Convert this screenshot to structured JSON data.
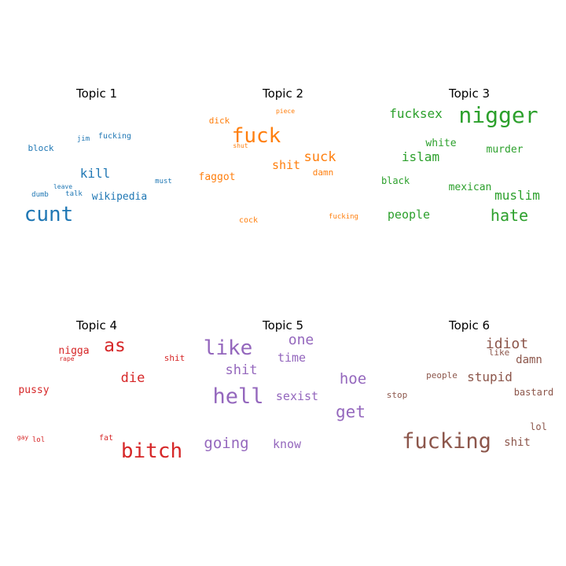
{
  "chart_data": {
    "type": "wordcloud",
    "panels": [
      {
        "title": "Topic 1",
        "color": "#1f77b4",
        "words": [
          {
            "text": "cunt",
            "weight": 1.0
          },
          {
            "text": "kill",
            "weight": 0.62
          },
          {
            "text": "wikipedia",
            "weight": 0.52
          },
          {
            "text": "block",
            "weight": 0.42
          },
          {
            "text": "fucking",
            "weight": 0.38
          },
          {
            "text": "must",
            "weight": 0.36
          },
          {
            "text": "jim",
            "weight": 0.32
          },
          {
            "text": "talk",
            "weight": 0.34
          },
          {
            "text": "dumb",
            "weight": 0.32
          },
          {
            "text": "leave",
            "weight": 0.28
          }
        ]
      },
      {
        "title": "Topic 2",
        "color": "#ff7f0e",
        "words": [
          {
            "text": "fuck",
            "weight": 1.0
          },
          {
            "text": "suck",
            "weight": 0.66
          },
          {
            "text": "shit",
            "weight": 0.62
          },
          {
            "text": "faggot",
            "weight": 0.56
          },
          {
            "text": "dick",
            "weight": 0.48
          },
          {
            "text": "damn",
            "weight": 0.46
          },
          {
            "text": "fucking",
            "weight": 0.38
          },
          {
            "text": "cock",
            "weight": 0.38
          },
          {
            "text": "piece",
            "weight": 0.32
          },
          {
            "text": "shut",
            "weight": 0.3
          }
        ]
      },
      {
        "title": "Topic 3",
        "color": "#2ca02c",
        "words": [
          {
            "text": "nigger",
            "weight": 1.0
          },
          {
            "text": "hate",
            "weight": 0.8
          },
          {
            "text": "fucksex",
            "weight": 0.64
          },
          {
            "text": "islam",
            "weight": 0.6
          },
          {
            "text": "muslim",
            "weight": 0.6
          },
          {
            "text": "people",
            "weight": 0.56
          },
          {
            "text": "murder",
            "weight": 0.5
          },
          {
            "text": "white",
            "weight": 0.5
          },
          {
            "text": "mexican",
            "weight": 0.5
          },
          {
            "text": "black",
            "weight": 0.44
          }
        ]
      },
      {
        "title": "Topic 4",
        "color": "#d62728",
        "words": [
          {
            "text": "bitch",
            "weight": 1.0
          },
          {
            "text": "as",
            "weight": 0.86
          },
          {
            "text": "die",
            "weight": 0.68
          },
          {
            "text": "pussy",
            "weight": 0.56
          },
          {
            "text": "nigga",
            "weight": 0.52
          },
          {
            "text": "fat",
            "weight": 0.44
          },
          {
            "text": "shit",
            "weight": 0.44
          },
          {
            "text": "lol",
            "weight": 0.36
          },
          {
            "text": "gay",
            "weight": 0.32
          },
          {
            "text": "rape",
            "weight": 0.32
          }
        ]
      },
      {
        "title": "Topic 5",
        "color": "#9467bd",
        "words": [
          {
            "text": "hell",
            "weight": 1.0
          },
          {
            "text": "like",
            "weight": 0.98
          },
          {
            "text": "get",
            "weight": 0.82
          },
          {
            "text": "going",
            "weight": 0.72
          },
          {
            "text": "hoe",
            "weight": 0.72
          },
          {
            "text": "one",
            "weight": 0.7
          },
          {
            "text": "shit",
            "weight": 0.68
          },
          {
            "text": "sexist",
            "weight": 0.62
          },
          {
            "text": "know",
            "weight": 0.62
          },
          {
            "text": "time",
            "weight": 0.62
          }
        ]
      },
      {
        "title": "Topic 6",
        "color": "#8c564b",
        "words": [
          {
            "text": "fucking",
            "weight": 1.0
          },
          {
            "text": "idiot",
            "weight": 0.64
          },
          {
            "text": "stupid",
            "weight": 0.62
          },
          {
            "text": "damn",
            "weight": 0.54
          },
          {
            "text": "shit",
            "weight": 0.54
          },
          {
            "text": "bastard",
            "weight": 0.46
          },
          {
            "text": "lol",
            "weight": 0.44
          },
          {
            "text": "like",
            "weight": 0.44
          },
          {
            "text": "people",
            "weight": 0.42
          },
          {
            "text": "stop",
            "weight": 0.42
          }
        ]
      }
    ]
  }
}
